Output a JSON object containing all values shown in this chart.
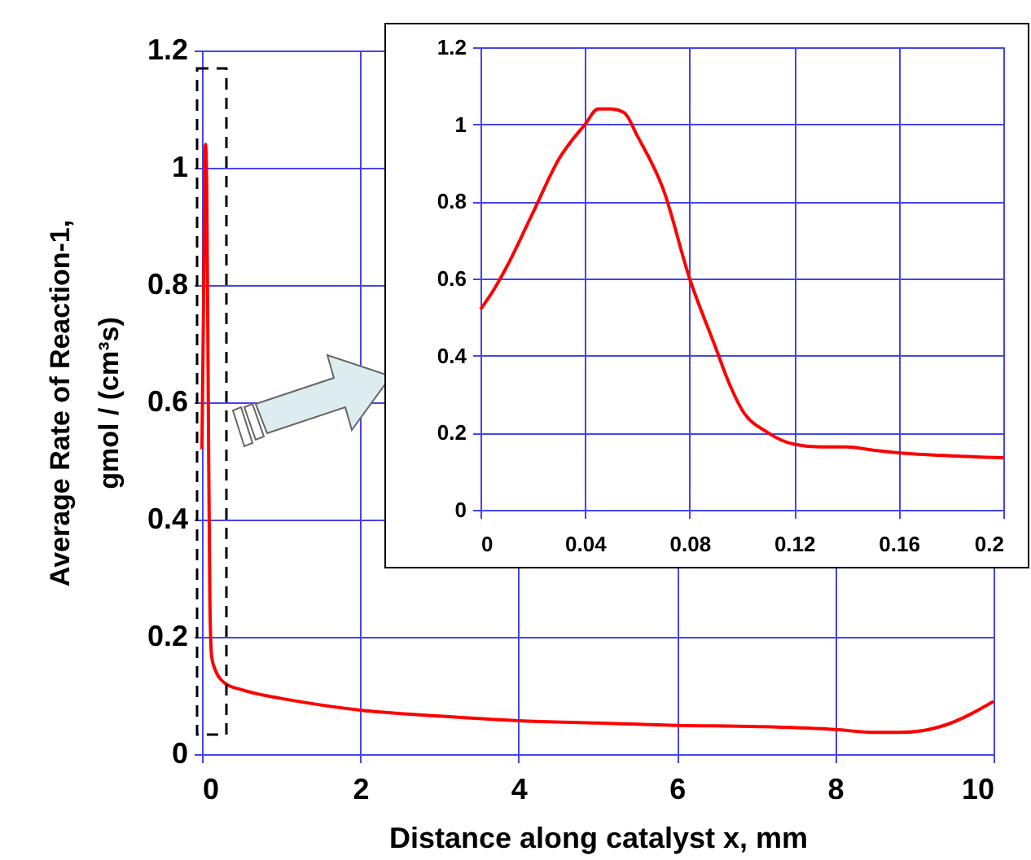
{
  "chart_data": [
    {
      "type": "line",
      "xlabel": "Distance along catalyst x, mm",
      "ylabel": "Average Rate of Reaction-1,\ngmol / (cm³s)",
      "x": [
        0,
        0.02,
        0.045,
        0.06,
        0.08,
        0.1,
        0.12,
        0.15,
        0.3,
        0.5,
        0.8,
        1,
        2,
        3,
        4,
        5,
        6,
        7,
        8,
        8.5,
        8.8,
        9.1,
        9.4,
        10
      ],
      "series": [
        {
          "color": "#ff0000",
          "values": [
            0.52,
            0.77,
            1.04,
            0.97,
            0.6,
            0.26,
            0.17,
            0.15,
            0.12,
            0.11,
            0.1,
            0.095,
            0.075,
            0.065,
            0.057,
            0.053,
            0.049,
            0.047,
            0.042,
            0.037,
            0.037,
            0.04,
            0.05,
            0.09
          ]
        }
      ],
      "xlim": [
        0,
        10
      ],
      "ylim": [
        0,
        1.2
      ],
      "xticks": [
        0,
        2,
        4,
        6,
        8,
        10
      ],
      "yticks": [
        0,
        0.2,
        0.4,
        0.6,
        0.8,
        1,
        1.2
      ],
      "grid": true
    },
    {
      "type": "line",
      "x": [
        0,
        0.005,
        0.01,
        0.02,
        0.03,
        0.04,
        0.045,
        0.05,
        0.055,
        0.06,
        0.07,
        0.08,
        0.09,
        0.095,
        0.1,
        0.11,
        0.12,
        0.13,
        0.14,
        0.15,
        0.16,
        0.18,
        0.2
      ],
      "series": [
        {
          "color": "#ff0000",
          "values": [
            0.52,
            0.57,
            0.63,
            0.77,
            0.91,
            1.0,
            1.04,
            1.04,
            1.03,
            0.97,
            0.83,
            0.6,
            0.42,
            0.33,
            0.26,
            0.2,
            0.17,
            0.163,
            0.163,
            0.155,
            0.148,
            0.14,
            0.135
          ]
        }
      ],
      "xlim": [
        0,
        0.2
      ],
      "ylim": [
        0,
        1.2
      ],
      "xticks": [
        0,
        0.04,
        0.08,
        0.12,
        0.16,
        0.2
      ],
      "yticks": [
        0,
        0.2,
        0.4,
        0.6,
        0.8,
        1,
        1.2
      ],
      "grid": true
    }
  ]
}
